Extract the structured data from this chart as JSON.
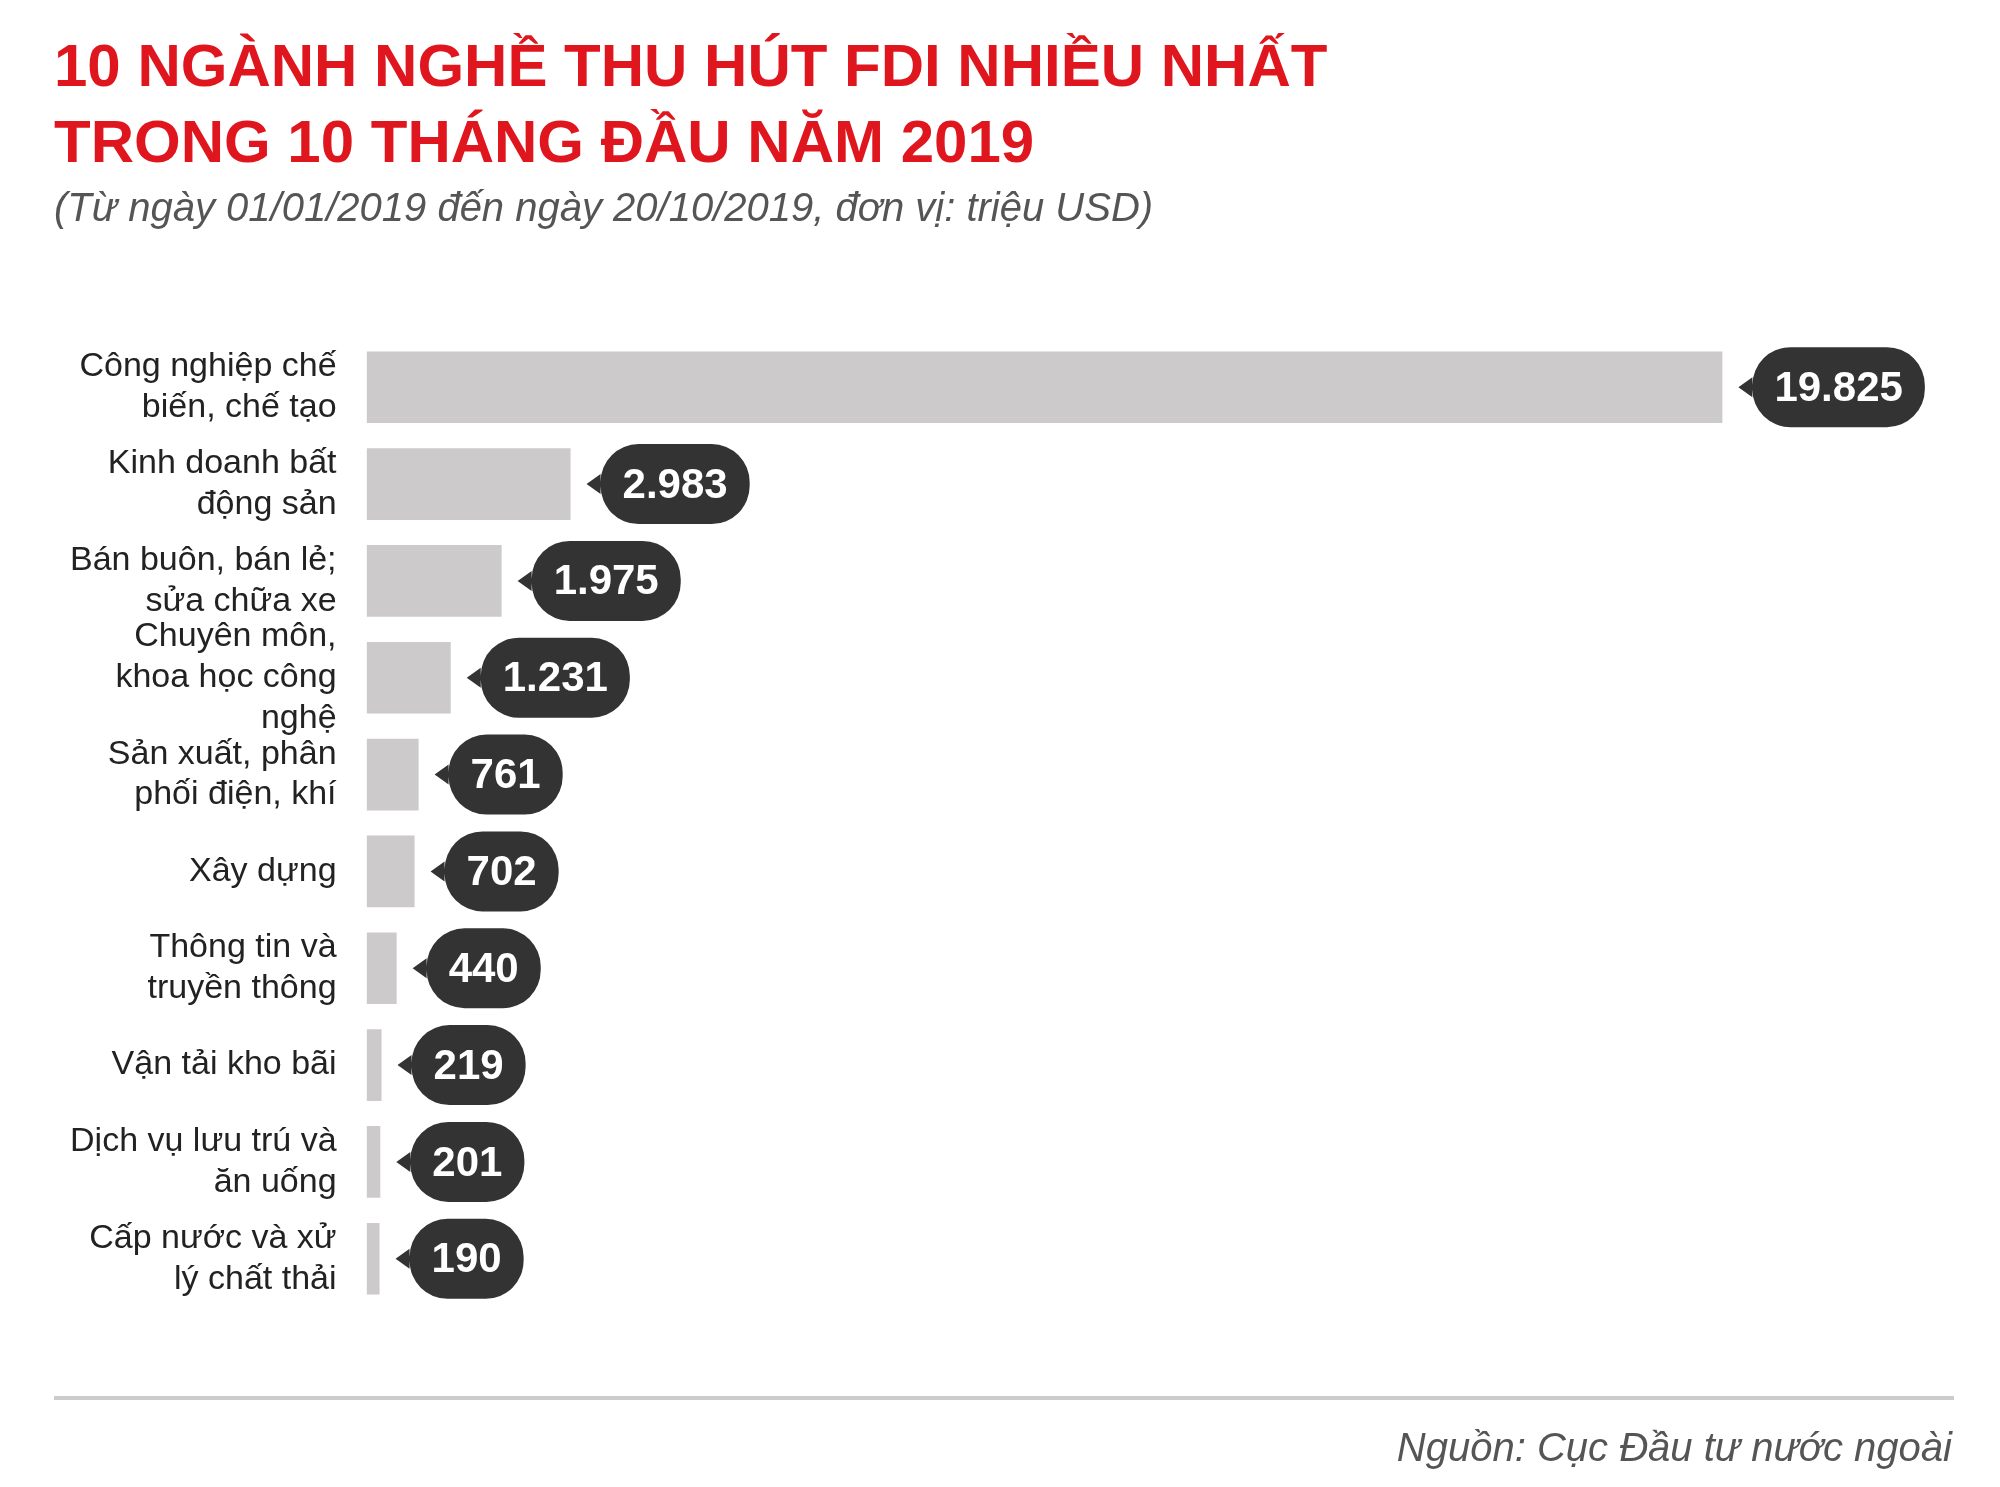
{
  "chart_data": {
    "type": "bar",
    "orientation": "horizontal",
    "title": "10 NGÀNH NGHỀ THU HÚT FDI NHIỀU NHẤT TRONG 10 THÁNG ĐẦU NĂM 2019",
    "subtitle": "(Từ ngày 01/01/2019 đến ngày 20/10/2019, đơn vị: triệu USD)",
    "categories": [
      "Công nghiệp chế biến, chế tạo",
      "Kinh doanh bất động sản",
      "Bán buôn, bán lẻ; sửa chữa xe",
      "Chuyên môn, khoa học công nghệ",
      "Sản xuất, phân phối điện, khí",
      "Xây dựng",
      "Thông tin và truyền thông",
      "Vận tải kho bãi",
      "Dịch vụ lưu trú và ăn uống",
      "Cấp nước và xử lý chất thải"
    ],
    "values": [
      19825,
      2983,
      1975,
      1231,
      761,
      702,
      440,
      219,
      201,
      190
    ],
    "value_labels": [
      "19.825",
      "2.983",
      "1.975",
      "1.231",
      "761",
      "702",
      "440",
      "219",
      "201",
      "190"
    ],
    "color": "#cccacb",
    "grid": false,
    "legend": false,
    "annotations": [
      "Nguồn: Cục Đầu tư nước ngoài"
    ]
  }
}
